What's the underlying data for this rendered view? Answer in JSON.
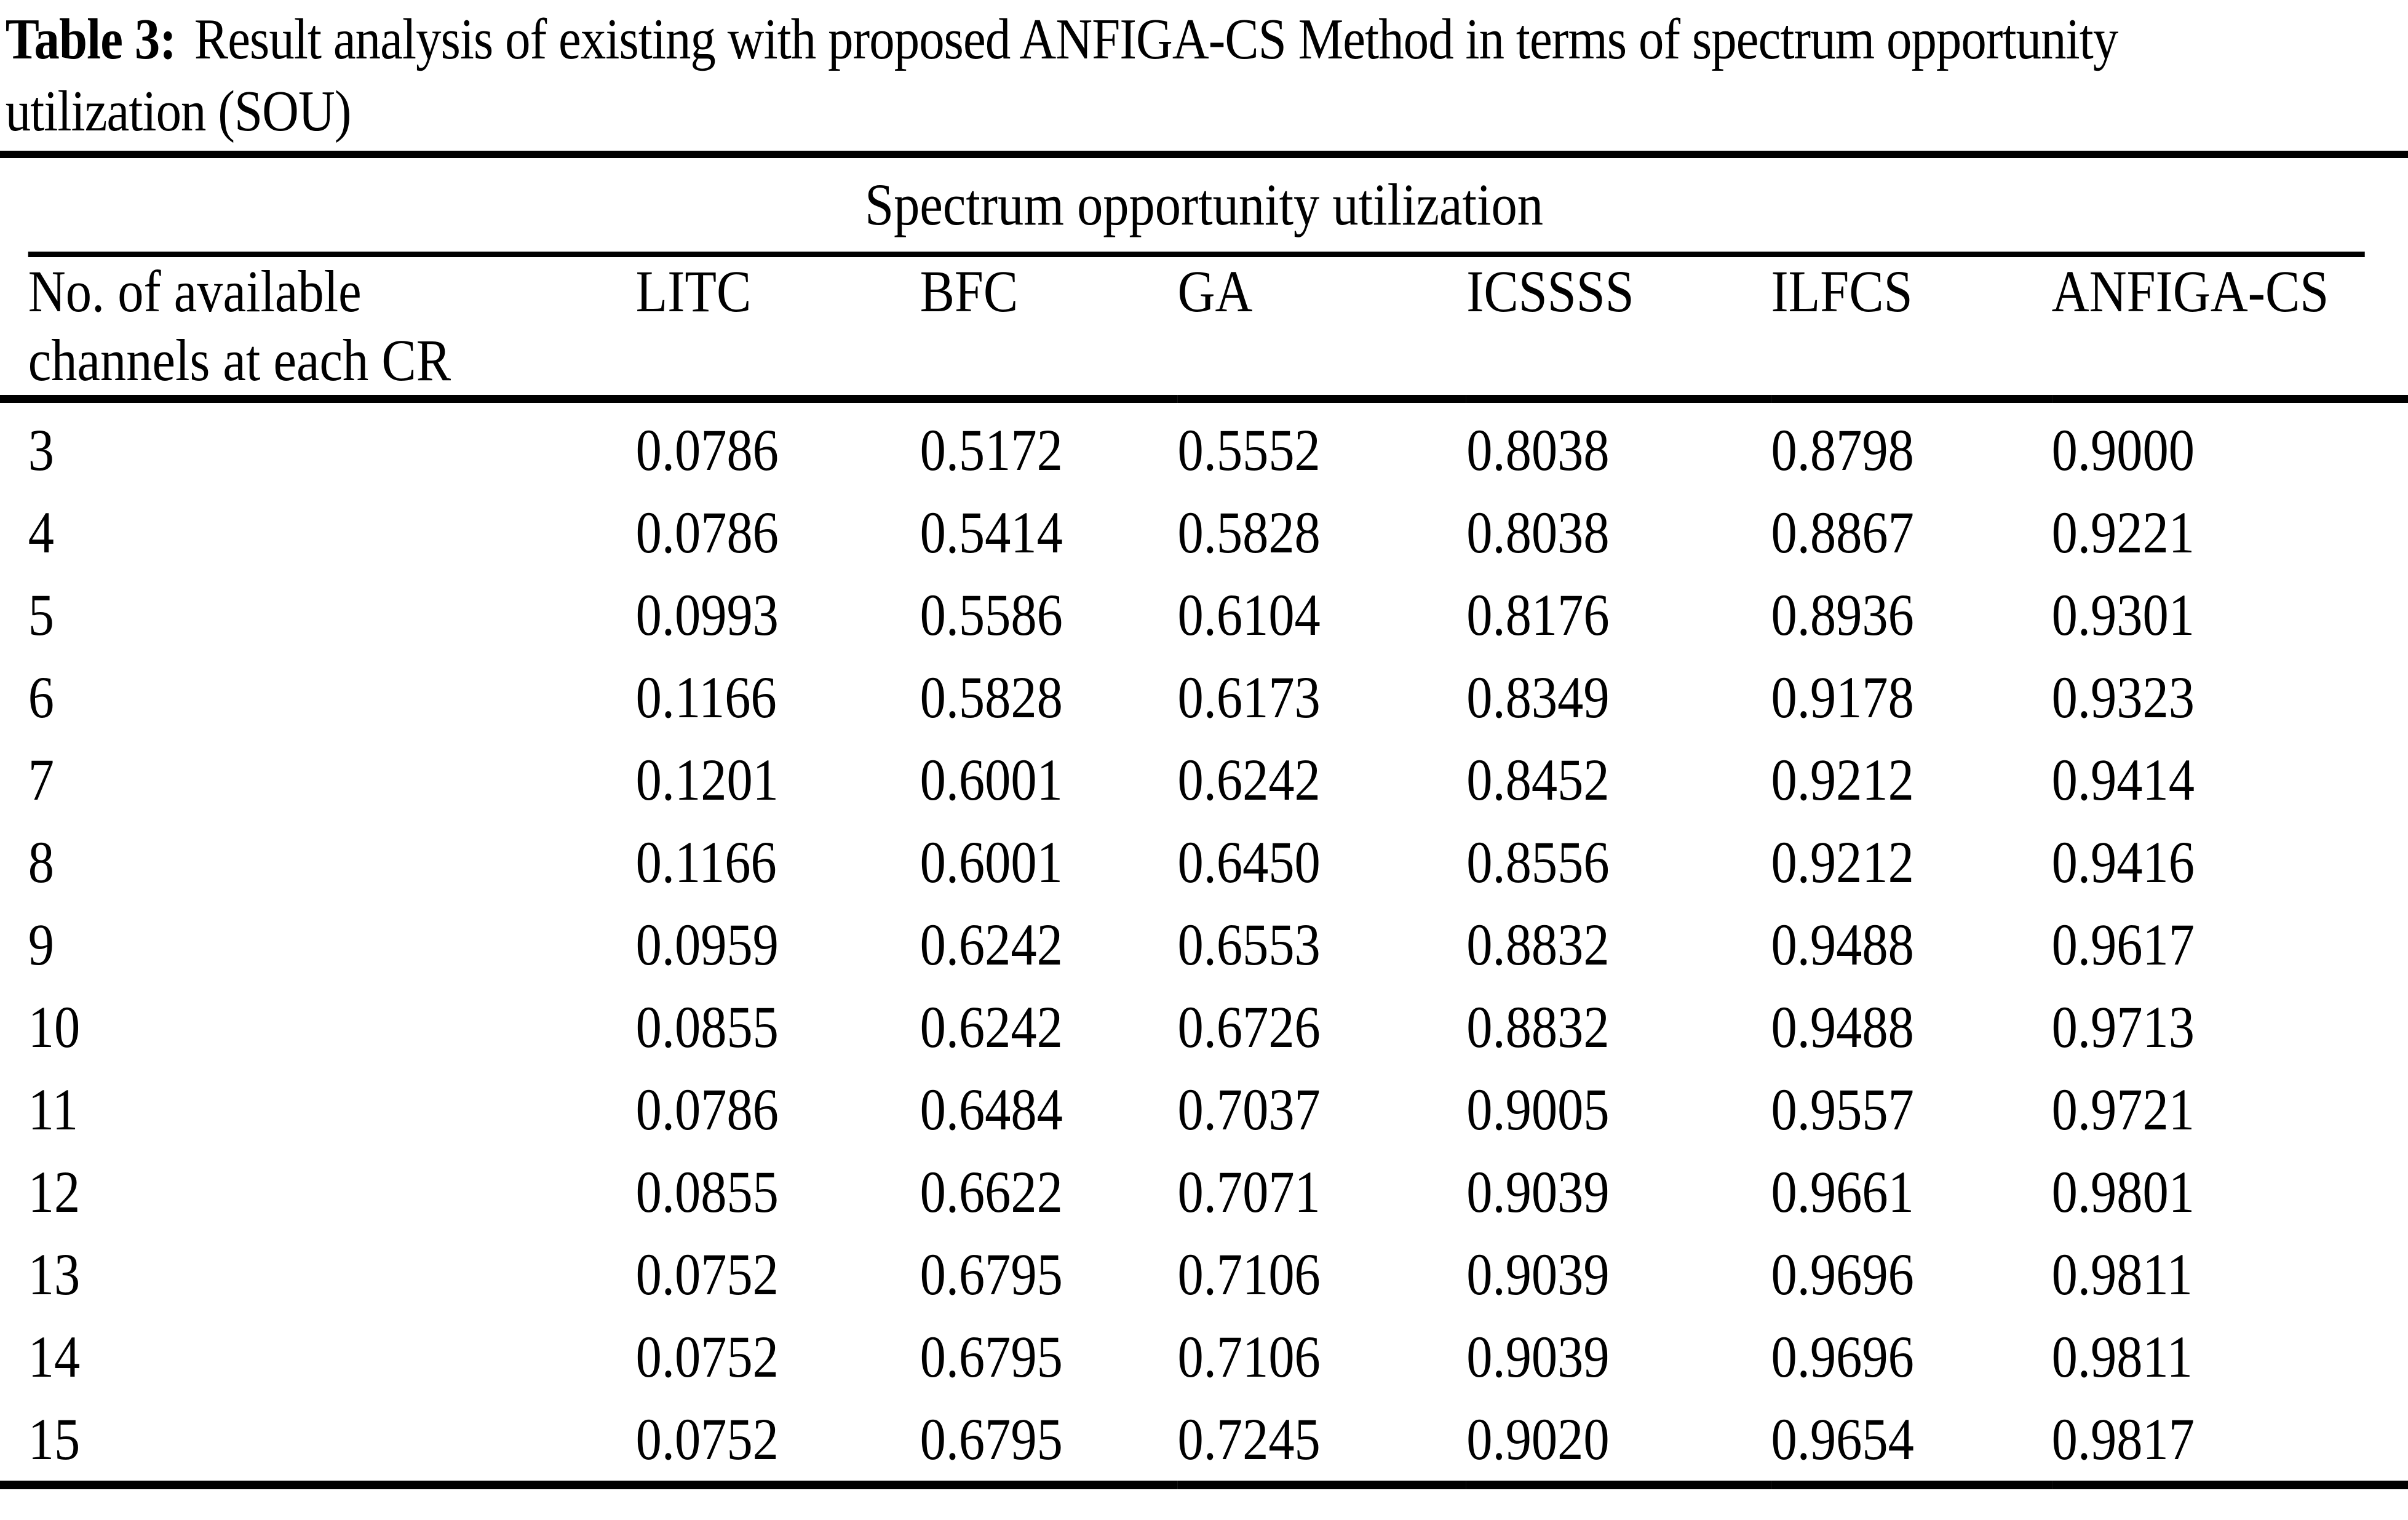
{
  "caption": {
    "label": "Table 3:",
    "text": "Result analysis of existing with proposed ANFIGA-CS Method in terms of spectrum opportunity\nutilization (SOU)"
  },
  "table": {
    "spanner": "Spectrum opportunity utilization",
    "row_header": "No. of available\nchannels at each CR",
    "method_headers": [
      "LITC",
      "BFC",
      "GA",
      "ICSSSS",
      "ILFCS",
      "ANFIGA-CS"
    ],
    "rows": [
      {
        "channels": "3",
        "values": [
          "0.0786",
          "0.5172",
          "0.5552",
          "0.8038",
          "0.8798",
          "0.9000"
        ]
      },
      {
        "channels": "4",
        "values": [
          "0.0786",
          "0.5414",
          "0.5828",
          "0.8038",
          "0.8867",
          "0.9221"
        ]
      },
      {
        "channels": "5",
        "values": [
          "0.0993",
          "0.5586",
          "0.6104",
          "0.8176",
          "0.8936",
          "0.9301"
        ]
      },
      {
        "channels": "6",
        "values": [
          "0.1166",
          "0.5828",
          "0.6173",
          "0.8349",
          "0.9178",
          "0.9323"
        ]
      },
      {
        "channels": "7",
        "values": [
          "0.1201",
          "0.6001",
          "0.6242",
          "0.8452",
          "0.9212",
          "0.9414"
        ]
      },
      {
        "channels": "8",
        "values": [
          "0.1166",
          "0.6001",
          "0.6450",
          "0.8556",
          "0.9212",
          "0.9416"
        ]
      },
      {
        "channels": "9",
        "values": [
          "0.0959",
          "0.6242",
          "0.6553",
          "0.8832",
          "0.9488",
          "0.9617"
        ]
      },
      {
        "channels": "10",
        "values": [
          "0.0855",
          "0.6242",
          "0.6726",
          "0.8832",
          "0.9488",
          "0.9713"
        ]
      },
      {
        "channels": "11",
        "values": [
          "0.0786",
          "0.6484",
          "0.7037",
          "0.9005",
          "0.9557",
          "0.9721"
        ]
      },
      {
        "channels": "12",
        "values": [
          "0.0855",
          "0.6622",
          "0.7071",
          "0.9039",
          "0.9661",
          "0.9801"
        ]
      },
      {
        "channels": "13",
        "values": [
          "0.0752",
          "0.6795",
          "0.7106",
          "0.9039",
          "0.9696",
          "0.9811"
        ]
      },
      {
        "channels": "14",
        "values": [
          "0.0752",
          "0.6795",
          "0.7106",
          "0.9039",
          "0.9696",
          "0.9811"
        ]
      },
      {
        "channels": "15",
        "values": [
          "0.0752",
          "0.6795",
          "0.7245",
          "0.9020",
          "0.9654",
          "0.9817"
        ]
      }
    ],
    "colors": {
      "text": "#000000",
      "background": "#ffffff",
      "rule": "#000000"
    }
  }
}
